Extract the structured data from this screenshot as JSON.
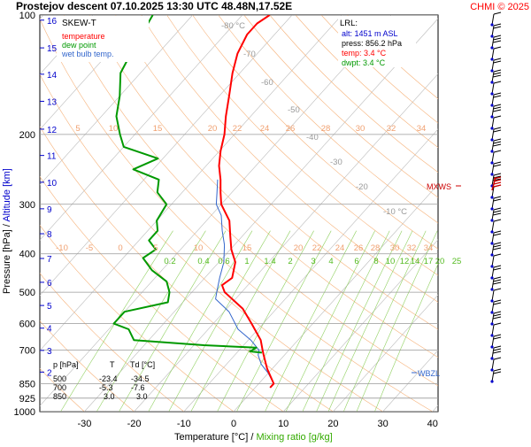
{
  "header": {
    "title": "Prostejov   descent   07.10.2025 13:30 UTC   48.48N,17.52E",
    "credit": "CHMI © 2025"
  },
  "legend": {
    "title": "SKEW-T",
    "items": [
      {
        "label": "temperature",
        "color": "#ff0000"
      },
      {
        "label": "dew point",
        "color": "#009900"
      },
      {
        "label": "wet bulb temp.",
        "color": "#3366cc"
      }
    ]
  },
  "lrl": {
    "title": "LRL:",
    "alt": "alt: 1451 m ASL",
    "press": "press: 856.2 hPa",
    "temp": "temp: 3.4 °C",
    "dwpt": "dwpt: 3.4 °C",
    "alt_color": "#0000cc",
    "temp_color": "#ff0000",
    "dwpt_color": "#009900"
  },
  "axes": {
    "ylabel": "Pressure [hPa]",
    "ylabel_sep": " / ",
    "ylabel2": "Altitude [km]",
    "xlabel": "Temperature [°C]",
    "xlabel_sep": " / ",
    "xlabel2": "Mixing ratio [g/kg]"
  },
  "markers": {
    "mxws": "MXWS",
    "wbzl": "WBZL"
  },
  "table": {
    "header": [
      "p [hPa]",
      "T",
      "Td [°C]"
    ],
    "rows": [
      [
        "500",
        "-23.4",
        "-34.5"
      ],
      [
        "700",
        "-5.3",
        "-7.6"
      ],
      [
        "850",
        "3.0",
        "3.0"
      ]
    ]
  },
  "chart_data": {
    "type": "line",
    "title": "Prostejov   descent   07.10.2025 13:30 UTC   48.48N,17.52E",
    "xlabel": "Temperature [°C] / Mixing ratio [g/kg]",
    "ylabel": "Pressure [hPa] / Altitude [km]",
    "xlim": [
      -40,
      50
    ],
    "ylim": [
      1000,
      100
    ],
    "y_scale": "log",
    "grid": true,
    "pressure_ticks": [
      "100",
      "200",
      "300",
      "400",
      "500",
      "600",
      "700",
      "850",
      "925",
      "1000"
    ],
    "pressure_tick_values": [
      100,
      200,
      300,
      400,
      500,
      600,
      700,
      850,
      925,
      1000
    ],
    "temperature_ticks": [
      "-30",
      "-20",
      "-10",
      "0",
      "10",
      "20",
      "30",
      "40"
    ],
    "temperature_tick_values": [
      -30,
      -20,
      -10,
      0,
      10,
      20,
      30,
      40
    ],
    "altitude_ticks": [
      "2",
      "3",
      "4",
      "5",
      "6",
      "7",
      "8",
      "9",
      "10",
      "11",
      "12",
      "13",
      "14",
      "15",
      "16"
    ],
    "altitude_tick_pressures": [
      795,
      701,
      616,
      540,
      472,
      411,
      356,
      308,
      264,
      226,
      194,
      165,
      141,
      121,
      103
    ],
    "dry_adiabat_labels": [
      "-80 °C",
      "-70",
      "-60",
      "-50",
      "-40",
      "-30",
      "-20",
      "-10 °C"
    ],
    "mixing_ratio_labels": [
      "0.2",
      "0.4",
      "0.6",
      "1",
      "1.4",
      "2",
      "3",
      "4",
      "6",
      "8",
      "10",
      "12",
      "14",
      "17",
      "20",
      "25"
    ],
    "series": [
      {
        "name": "temperature",
        "color": "#ff0000",
        "points": [
          [
            870,
            3.0
          ],
          [
            850,
            3.0
          ],
          [
            780,
            -1.0
          ],
          [
            720,
            -4.2
          ],
          [
            700,
            -5.3
          ],
          [
            660,
            -7.5
          ],
          [
            600,
            -12.3
          ],
          [
            550,
            -16.8
          ],
          [
            500,
            -23.4
          ],
          [
            480,
            -25.2
          ],
          [
            460,
            -24.5
          ],
          [
            420,
            -26.7
          ],
          [
            390,
            -29.8
          ],
          [
            360,
            -32.5
          ],
          [
            330,
            -35.4
          ],
          [
            300,
            -40.0
          ],
          [
            280,
            -42.3
          ],
          [
            260,
            -44.6
          ],
          [
            240,
            -47.4
          ],
          [
            220,
            -49.8
          ],
          [
            200,
            -52.0
          ],
          [
            180,
            -55.0
          ],
          [
            160,
            -58.0
          ],
          [
            140,
            -61.5
          ],
          [
            125,
            -64.0
          ],
          [
            112,
            -65.5
          ],
          [
            105,
            -65.5
          ],
          [
            100,
            -64.5
          ]
        ]
      },
      {
        "name": "dew point",
        "color": "#009900",
        "points": [
          [
            710,
            -5.0
          ],
          [
            705,
            -7.6
          ],
          [
            690,
            -7.0
          ],
          [
            680,
            -18.0
          ],
          [
            660,
            -33.0
          ],
          [
            620,
            -36.0
          ],
          [
            600,
            -40.0
          ],
          [
            560,
            -40.0
          ],
          [
            530,
            -33.0
          ],
          [
            500,
            -34.5
          ],
          [
            470,
            -37.0
          ],
          [
            440,
            -42.0
          ],
          [
            410,
            -46.0
          ],
          [
            390,
            -45.0
          ],
          [
            370,
            -48.0
          ],
          [
            350,
            -48.0
          ],
          [
            330,
            -50.0
          ],
          [
            300,
            -51.0
          ],
          [
            280,
            -55.0
          ],
          [
            260,
            -57.0
          ],
          [
            245,
            -64.0
          ],
          [
            230,
            -61.0
          ],
          [
            215,
            -70.0
          ],
          [
            200,
            -73.0
          ],
          [
            180,
            -77.0
          ],
          [
            160,
            -80.0
          ],
          [
            140,
            -84.0
          ],
          [
            120,
            -86.0
          ],
          [
            100,
            -88.0
          ]
        ]
      },
      {
        "name": "wet bulb temp.",
        "color": "#3366cc",
        "points": [
          [
            870,
            3.0
          ],
          [
            850,
            3.0
          ],
          [
            800,
            0.0
          ],
          [
            760,
            -3.0
          ],
          [
            720,
            -5.3
          ],
          [
            700,
            -6.0
          ],
          [
            660,
            -9.5
          ],
          [
            620,
            -14.0
          ],
          [
            560,
            -19.0
          ],
          [
            520,
            -24.0
          ],
          [
            500,
            -25.0
          ],
          [
            460,
            -27.0
          ],
          [
            420,
            -29.0
          ],
          [
            380,
            -32.0
          ],
          [
            350,
            -35.0
          ],
          [
            320,
            -38.0
          ],
          [
            300,
            -41.0
          ],
          [
            280,
            -43.0
          ],
          [
            260,
            -45.2
          ]
        ]
      }
    ],
    "annotations": [
      "MXWS",
      "WBZL",
      "LRL"
    ]
  },
  "colors": {
    "isobar": "#999999",
    "isotherm": "#bbbbbb",
    "dry_adiabat": "#f6b27a",
    "moist_adiabat": "#f6c49a",
    "mixing_ratio": "#90d060",
    "wind": "#000000",
    "altitude": "#0000cc",
    "credit": "#ff0000"
  }
}
